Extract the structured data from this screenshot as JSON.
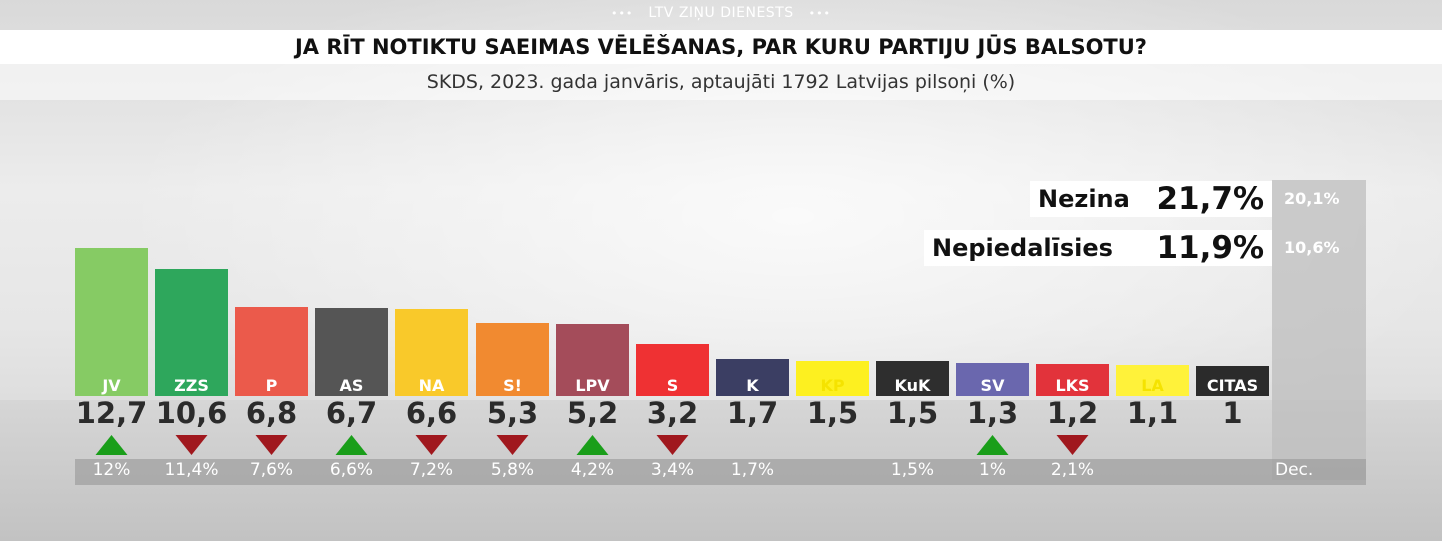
{
  "header": {
    "brand": "LTV ZIŅU DIENESTS",
    "brand_dots": "•••",
    "title": "JA RĪT NOTIKTU SAEIMAS VĒLĒŠANAS, PAR KURU PARTIJU JŪS BALSOTU?",
    "subtitle": "SKDS, 2023. gada janvāris, aptaujāti 1792 Latvijas pilsoņi (%)"
  },
  "side": {
    "nezina_label": "Nezina",
    "nezina_value": "21,7%",
    "nezina_prev": "20,1%",
    "nepiedalisies_label": "Nepiedalīsies",
    "nepiedalisies_value": "11,9%",
    "nepiedalisies_prev": "10,6%"
  },
  "prev_label": "Dec.",
  "colors": {
    "up": "#1a9e1a",
    "down": "#a0181e"
  },
  "chart_data": {
    "type": "bar",
    "title": "JA RĪT NOTIKTU SAEIMAS VĒLĒŠANAS, PAR KURU PARTIJU JŪS BALSOTU?",
    "subtitle": "SKDS, 2023. gada janvāris, aptaujāti 1792 Latvijas pilsoņi (%)",
    "categories": [
      "JV",
      "ZZS",
      "P",
      "AS",
      "NA",
      "S!",
      "LPV",
      "S",
      "K",
      "KP",
      "KuK",
      "SV",
      "LKS",
      "LA",
      "CITAS"
    ],
    "values": [
      12.7,
      10.6,
      6.8,
      6.7,
      6.6,
      5.3,
      5.2,
      3.2,
      1.7,
      1.5,
      1.5,
      1.3,
      1.2,
      1.1,
      1
    ],
    "value_labels": [
      "12,7",
      "10,6",
      "6,8",
      "6,7",
      "6,6",
      "5,3",
      "5,2",
      "3,2",
      "1,7",
      "1,5",
      "1,5",
      "1,3",
      "1,2",
      "1,1",
      "1"
    ],
    "previous_labels": [
      "12%",
      "11,4%",
      "7,6%",
      "6,6%",
      "7,2%",
      "5,8%",
      "4,2%",
      "3,4%",
      "1,7%",
      "",
      "1,5%",
      "1%",
      "2,1%",
      "",
      ""
    ],
    "trend": [
      "up",
      "down",
      "down",
      "up",
      "down",
      "down",
      "up",
      "down",
      "",
      "",
      "",
      "up",
      "down",
      "",
      ""
    ],
    "colors": [
      "#86cb64",
      "#2ea75c",
      "#eb5a4b",
      "#555555",
      "#f9c92a",
      "#f18a30",
      "#a44c5a",
      "#ef3133",
      "#3b3e63",
      "#fdf020",
      "#2e2e2e",
      "#6a67ae",
      "#e2333b",
      "#fff23a",
      "#2b2b2b"
    ],
    "label_text_colors": [
      "#ffffff",
      "#ffffff",
      "#ffffff",
      "#ffffff",
      "#ffffff",
      "#ffffff",
      "#ffffff",
      "#ffffff",
      "#ffffff",
      "#f5e300",
      "#ffffff",
      "#ffffff",
      "#ffffff",
      "#f5e300",
      "#ffffff"
    ],
    "extra": [
      {
        "label": "Nezina",
        "value": 21.7,
        "previous": 20.1
      },
      {
        "label": "Nepiedalīsies",
        "value": 11.9,
        "previous": 10.6
      }
    ],
    "previous_period": "Dec.",
    "ylim": [
      0,
      12.7
    ],
    "grid": false
  }
}
